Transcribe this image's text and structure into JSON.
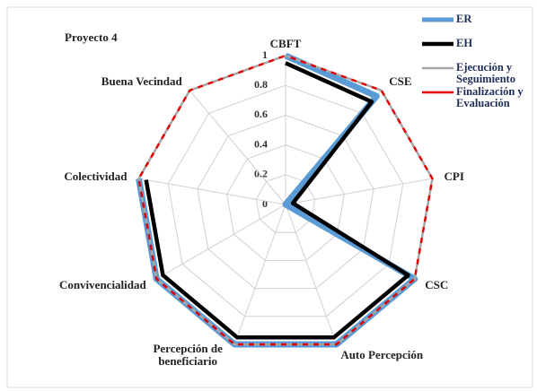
{
  "chart_data": {
    "type": "radar",
    "title": "Proyecto 4",
    "categories": [
      "CBFT",
      "CSE",
      "CPI",
      "CSC",
      "Auto Percepción",
      "Percepción de beneficiario",
      "Convivencialidad",
      "Colectividad",
      "Buena Vecindad"
    ],
    "ylim": [
      0,
      1
    ],
    "yticks": [
      0,
      0.2,
      0.4,
      0.6,
      0.8,
      1
    ],
    "grid": true,
    "legend": "right",
    "series": [
      {
        "name": "ER",
        "color": "#5b9bd5",
        "values": [
          1,
          0.95,
          0,
          1,
          1,
          1,
          1,
          1,
          null
        ]
      },
      {
        "name": "EH",
        "color": "#000000",
        "values": [
          0.95,
          0.9,
          0.05,
          0.95,
          0.95,
          0.95,
          0.95,
          0.95,
          null
        ]
      },
      {
        "name": "Ejecución y Seguimiento",
        "color": "#a6a6a6",
        "values": [
          1,
          1,
          1,
          1,
          1,
          1,
          1,
          1,
          1
        ]
      },
      {
        "name": "Finalización y Evaluación",
        "color": "#e00000",
        "values": [
          1,
          1,
          1,
          1,
          1,
          1,
          1,
          1,
          1
        ]
      }
    ]
  }
}
